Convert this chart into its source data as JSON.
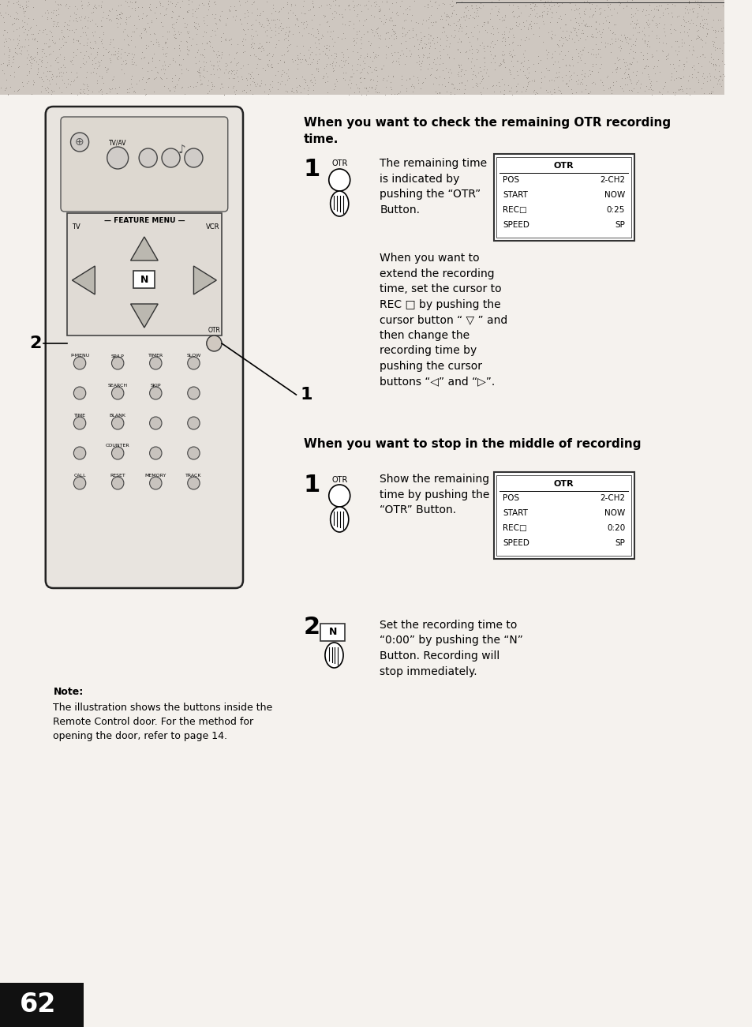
{
  "bg_color": "#f0ede8",
  "page_number": "62",
  "section1_title": "When you want to check the remaining OTR recording\ntime.",
  "section2_title": "When you want to stop in the middle of recording",
  "step1a_text": "The remaining time\nis indicated by\npushing the “OTR”\nButton.",
  "step1a_extend_text": "When you want to\nextend the recording\ntime, set the cursor to\nREC □ by pushing the\ncursor button “ ▽ ” and\nthen change the\nrecording time by\npushing the cursor\nbuttons “◁” and “▷”.",
  "box1_title": "OTR",
  "box1_line1_left": "POS",
  "box1_line1_right": "2-CH2",
  "box1_line2_left": "START",
  "box1_line2_right": "NOW",
  "box1_line3_left": "REC□",
  "box1_line3_right": "0:25",
  "box1_line4_left": "SPEED",
  "box1_line4_right": "SP",
  "step2_1_text": "Show the remaining\ntime by pushing the\n“OTR” Button.",
  "box2_title": "OTR",
  "box2_line1_left": "POS",
  "box2_line1_right": "2-CH2",
  "box2_line2_left": "START",
  "box2_line2_right": "NOW",
  "box2_line3_left": "REC□",
  "box2_line3_right": "0:20",
  "box2_line4_left": "SPEED",
  "box2_line4_right": "SP",
  "step2_2_text": "Set the recording time to\n“0:00” by pushing the “N”\nButton. Recording will\nstop immediately.",
  "note_title": "Note:",
  "note_text": "The illustration shows the buttons inside the\nRemote Control door. For the method for\nopening the door, refer to page 14.",
  "text_color": "#000000",
  "box_color": "#ffffff",
  "box_border": "#000000"
}
